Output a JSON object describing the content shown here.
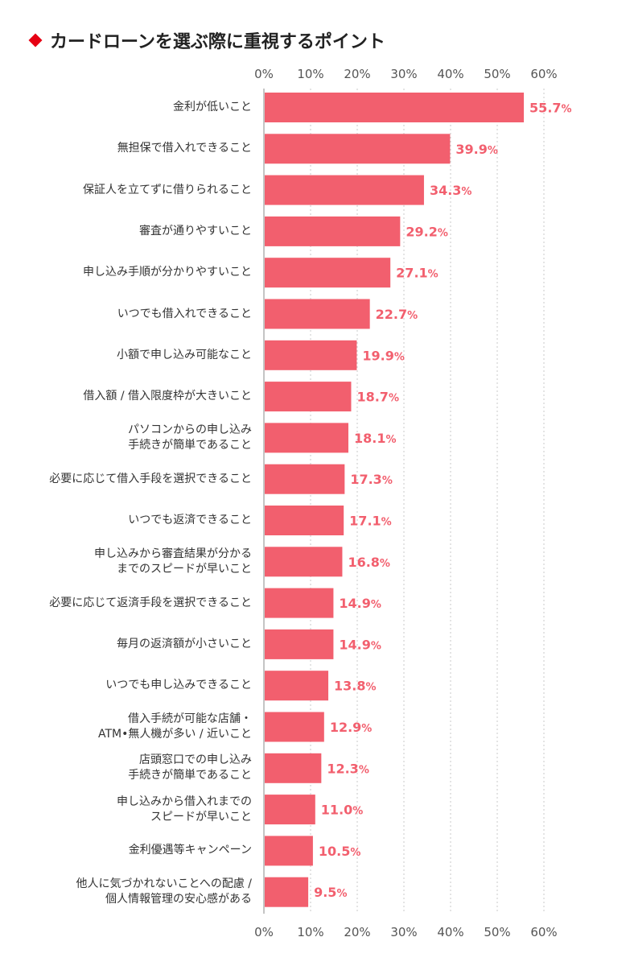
{
  "chart_data": {
    "type": "bar",
    "orientation": "horizontal",
    "title": "カードローンを選ぶ際に重視するポイント",
    "xlim": [
      0,
      60
    ],
    "x_ticks": [
      "0%",
      "10%",
      "20%",
      "30%",
      "40%",
      "50%",
      "60%"
    ],
    "grid": true,
    "bar_color": "#f25f6e",
    "label_color": "#f25f6e",
    "accent_color": "#e60012",
    "categories": [
      "金利が低いこと",
      "無担保で借入れできること",
      "保証人を立てずに借りられること",
      "審査が通りやすいこと",
      "申し込み手順が分かりやすいこと",
      "いつでも借入れできること",
      "小額で申し込み可能なこと",
      "借入額 / 借入限度枠が大きいこと",
      "パソコンからの申し込み\n手続きが簡単であること",
      "必要に応じて借入手段を選択できること",
      "いつでも返済できること",
      "申し込みから審査結果が分かる\nまでのスピードが早いこと",
      "必要に応じて返済手段を選択できること",
      "毎月の返済額が小さいこと",
      "いつでも申し込みできること",
      "借入手続が可能な店舗・\nATM•無人機が多い / 近いこと",
      "店頭窓口での申し込み\n手続きが簡単であること",
      "申し込みから借入れまでの\nスピードが早いこと",
      "金利優遇等キャンペーン",
      "他人に気づかれないことへの配慮 /\n個人情報管理の安心感がある"
    ],
    "values": [
      55.7,
      39.9,
      34.3,
      29.2,
      27.1,
      22.7,
      19.9,
      18.7,
      18.1,
      17.3,
      17.1,
      16.8,
      14.9,
      14.9,
      13.8,
      12.9,
      12.3,
      11.0,
      10.5,
      9.5
    ],
    "value_labels": [
      "55.7%",
      "39.9%",
      "34.3%",
      "29.2%",
      "27.1%",
      "22.7%",
      "19.9%",
      "18.7%",
      "18.1%",
      "17.3%",
      "17.1%",
      "16.8%",
      "14.9%",
      "14.9%",
      "13.8%",
      "12.9%",
      "12.3%",
      "11.0%",
      "10.5%",
      "9.5%"
    ]
  }
}
